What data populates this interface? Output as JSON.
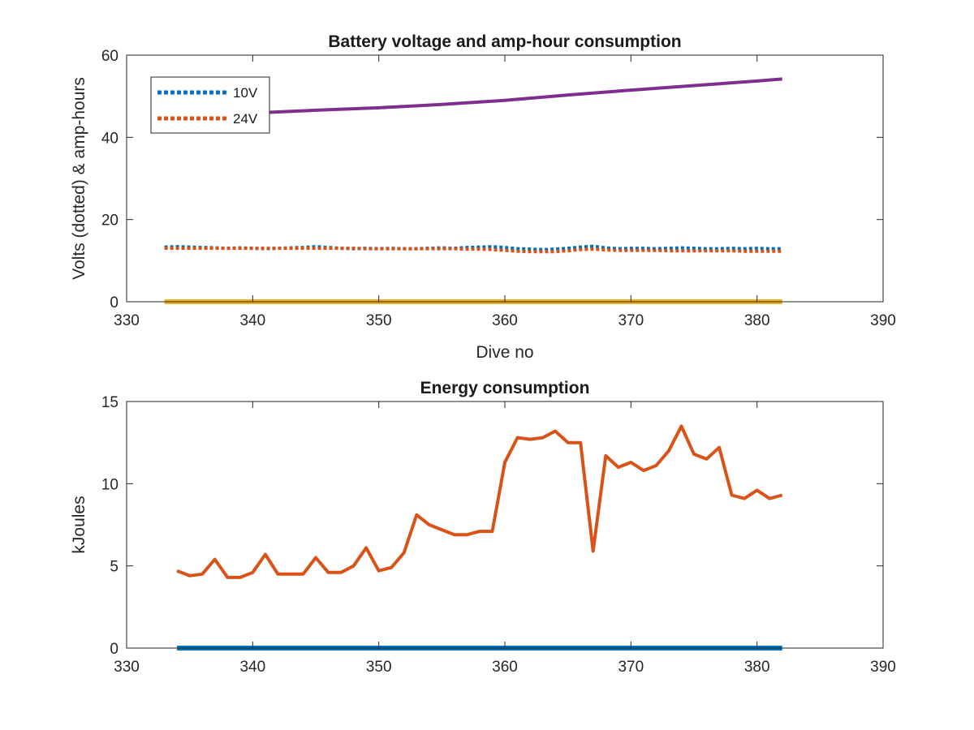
{
  "chart_data": [
    {
      "type": "line",
      "title": "Battery voltage and amp-hour consumption",
      "xlabel": "Dive no",
      "ylabel": "Volts (dotted) & amp-hours",
      "xlim": [
        330,
        390
      ],
      "ylim": [
        0,
        60
      ],
      "xticks": [
        330,
        340,
        350,
        360,
        370,
        380,
        390
      ],
      "yticks": [
        0,
        20,
        40,
        60
      ],
      "grid": false,
      "legend": {
        "placement": "top-left",
        "entries": [
          "10V",
          "24V"
        ]
      },
      "series": [
        {
          "name": "10V",
          "style": "dotted",
          "color": "#0072BD",
          "x": [
            333,
            334,
            335,
            336,
            337,
            338,
            339,
            340,
            341,
            342,
            343,
            344,
            345,
            346,
            347,
            348,
            349,
            350,
            351,
            352,
            353,
            354,
            355,
            356,
            357,
            358,
            359,
            360,
            361,
            362,
            363,
            364,
            365,
            366,
            367,
            368,
            369,
            370,
            371,
            372,
            373,
            374,
            375,
            376,
            377,
            378,
            379,
            380,
            381,
            382
          ],
          "y": [
            13.3,
            13.4,
            13.3,
            13.2,
            13.1,
            13.0,
            13.1,
            13.0,
            12.9,
            13.0,
            13.1,
            13.2,
            13.4,
            13.2,
            13.0,
            12.9,
            13.0,
            12.9,
            13.0,
            12.9,
            12.9,
            13.0,
            13.1,
            13.0,
            13.2,
            13.3,
            13.4,
            13.2,
            12.9,
            12.8,
            12.7,
            12.8,
            13.0,
            13.3,
            13.5,
            13.1,
            12.9,
            13.0,
            13.0,
            12.9,
            13.0,
            13.1,
            13.0,
            12.9,
            12.9,
            13.0,
            12.9,
            13.0,
            12.9,
            12.9
          ]
        },
        {
          "name": "24V",
          "style": "dotted",
          "color": "#D95319",
          "x": [
            333,
            334,
            335,
            336,
            337,
            338,
            339,
            340,
            341,
            342,
            343,
            344,
            345,
            346,
            347,
            348,
            349,
            350,
            351,
            352,
            353,
            354,
            355,
            356,
            357,
            358,
            359,
            360,
            361,
            362,
            363,
            364,
            365,
            366,
            367,
            368,
            369,
            370,
            371,
            372,
            373,
            374,
            375,
            376,
            377,
            378,
            379,
            380,
            381,
            382
          ],
          "y": [
            13.0,
            13.0,
            13.0,
            13.0,
            13.0,
            13.0,
            13.0,
            13.0,
            13.0,
            13.0,
            13.0,
            13.0,
            13.0,
            13.0,
            13.0,
            13.0,
            12.9,
            12.9,
            12.9,
            12.9,
            12.9,
            12.9,
            12.9,
            12.9,
            12.8,
            12.8,
            12.7,
            12.5,
            12.3,
            12.2,
            12.2,
            12.2,
            12.4,
            12.7,
            12.8,
            12.6,
            12.5,
            12.5,
            12.5,
            12.5,
            12.4,
            12.4,
            12.4,
            12.4,
            12.4,
            12.4,
            12.3,
            12.3,
            12.3,
            12.3
          ]
        },
        {
          "style": "solid",
          "color": "#7E2F8E",
          "x": [
            333,
            336,
            340,
            345,
            350,
            355,
            360,
            365,
            370,
            375,
            380,
            382
          ],
          "y": [
            45.0,
            45.3,
            45.9,
            46.6,
            47.2,
            48.0,
            49.0,
            50.3,
            51.5,
            52.6,
            53.7,
            54.2
          ]
        },
        {
          "style": "solid",
          "color": "#EDB120",
          "x": [
            333,
            382
          ],
          "y": [
            0,
            0
          ]
        }
      ]
    },
    {
      "type": "line",
      "title": "Energy consumption",
      "xlabel": "",
      "ylabel": "kJoules",
      "xlim": [
        330,
        390
      ],
      "ylim": [
        0,
        15
      ],
      "xticks": [
        330,
        340,
        350,
        360,
        370,
        380,
        390
      ],
      "yticks": [
        0,
        5,
        10,
        15
      ],
      "grid": false,
      "series": [
        {
          "style": "solid",
          "color": "#D95319",
          "x": [
            334,
            335,
            336,
            337,
            338,
            339,
            340,
            341,
            342,
            343,
            344,
            345,
            346,
            347,
            348,
            349,
            350,
            351,
            352,
            353,
            354,
            355,
            356,
            357,
            358,
            359,
            360,
            361,
            362,
            363,
            364,
            365,
            366,
            367,
            368,
            369,
            370,
            371,
            372,
            373,
            374,
            375,
            376,
            377,
            378,
            379,
            380,
            381,
            382
          ],
          "y": [
            4.7,
            4.4,
            4.5,
            5.4,
            4.3,
            4.3,
            4.6,
            5.7,
            4.5,
            4.5,
            4.5,
            5.5,
            4.6,
            4.6,
            5.0,
            6.1,
            4.7,
            4.9,
            5.8,
            8.1,
            7.5,
            7.2,
            6.9,
            6.9,
            7.1,
            7.1,
            11.3,
            12.8,
            12.7,
            12.8,
            13.2,
            12.5,
            12.5,
            5.9,
            11.7,
            11.0,
            11.3,
            10.8,
            11.1,
            12.0,
            13.5,
            11.8,
            11.5,
            12.2,
            9.3,
            9.1,
            9.6,
            9.1,
            9.3
          ]
        },
        {
          "style": "solid",
          "color": "#0072BD",
          "x": [
            334,
            382
          ],
          "y": [
            0,
            0
          ]
        }
      ]
    }
  ]
}
